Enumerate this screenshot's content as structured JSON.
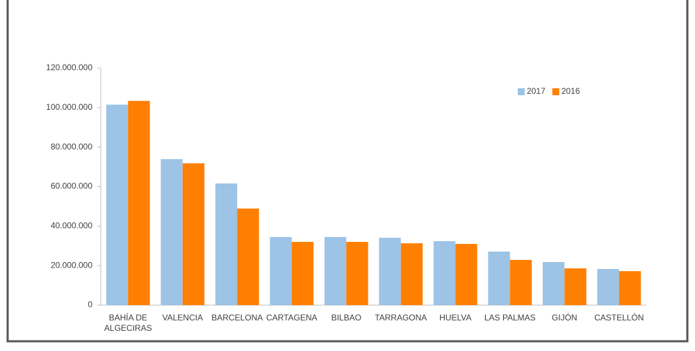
{
  "chart_data": {
    "type": "bar",
    "categories": [
      "BAHÍA DE ALGECIRAS",
      "VALENCIA",
      "BARCELONA",
      "CARTAGENA",
      "BILBAO",
      "TARRAGONA",
      "HUELVA",
      "LAS PALMAS",
      "GIJÓN",
      "CASTELLÓN"
    ],
    "series": [
      {
        "name": "2017",
        "color": "#9dc3e6",
        "values": [
          101500000,
          73900000,
          61600000,
          34500000,
          34500000,
          34100000,
          32400000,
          27100000,
          21800000,
          18300000
        ]
      },
      {
        "name": "2016",
        "color": "#ff7f00",
        "values": [
          103400000,
          71800000,
          48900000,
          32000000,
          32000000,
          31300000,
          31000000,
          22900000,
          18600000,
          17200000
        ]
      }
    ],
    "ylim": [
      0,
      120000000
    ],
    "yticks": [
      0,
      {
        "value": 20000000,
        "label": "20.000.000"
      },
      {
        "value": 40000000,
        "label": "40.000.000"
      },
      {
        "value": 60000000,
        "label": "60.000.000"
      },
      {
        "value": 80000000,
        "label": "80.000.000"
      },
      {
        "value": 100000000,
        "label": "100.000.000"
      },
      {
        "value": 120000000,
        "label": "120.000.000"
      }
    ],
    "legend": "top-right"
  }
}
